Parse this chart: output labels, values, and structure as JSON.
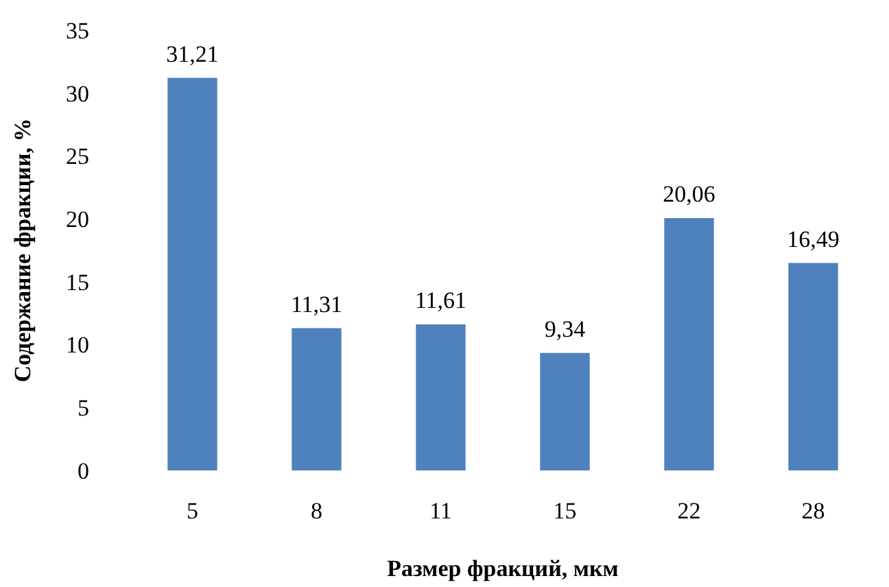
{
  "chart_data": {
    "type": "bar",
    "xlabel": "Размер фракций, мкм",
    "ylabel": "Содержание фракции, %",
    "categories": [
      "5",
      "8",
      "11",
      "15",
      "22",
      "28"
    ],
    "values": [
      31.21,
      11.31,
      11.61,
      9.34,
      20.06,
      16.49
    ],
    "value_labels": [
      "31,21",
      "11,31",
      "11,61",
      "9,34",
      "20,06",
      "16,49"
    ],
    "color": "#4f81bd",
    "ylim": [
      0,
      35
    ],
    "yticks": [
      0,
      5,
      10,
      15,
      20,
      25,
      30,
      35
    ],
    "grid": false
  }
}
